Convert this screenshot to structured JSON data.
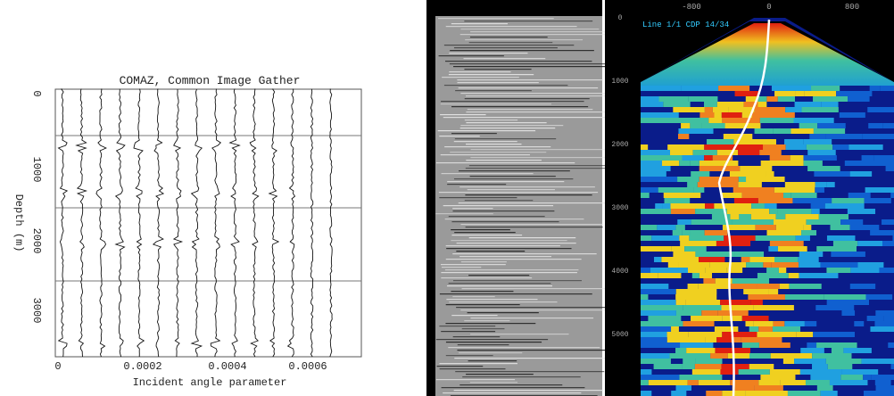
{
  "left_panel": {
    "title": "COMAZ, Common Image Gather",
    "y_label": "Depth (m)",
    "x_label": "Incident angle parameter",
    "y_ticks": [
      "0",
      "1000",
      "2000",
      "3000"
    ],
    "x_ticks": [
      "0",
      "0.0002",
      "0.0004",
      "0.0006"
    ]
  },
  "right_panel": {
    "caption": "Line 1/1 CDP 14/34",
    "x_ticks": [
      "-800",
      "0",
      "800"
    ],
    "y_ticks": [
      "0",
      "1000",
      "2000",
      "3000",
      "4000",
      "5000"
    ]
  }
}
